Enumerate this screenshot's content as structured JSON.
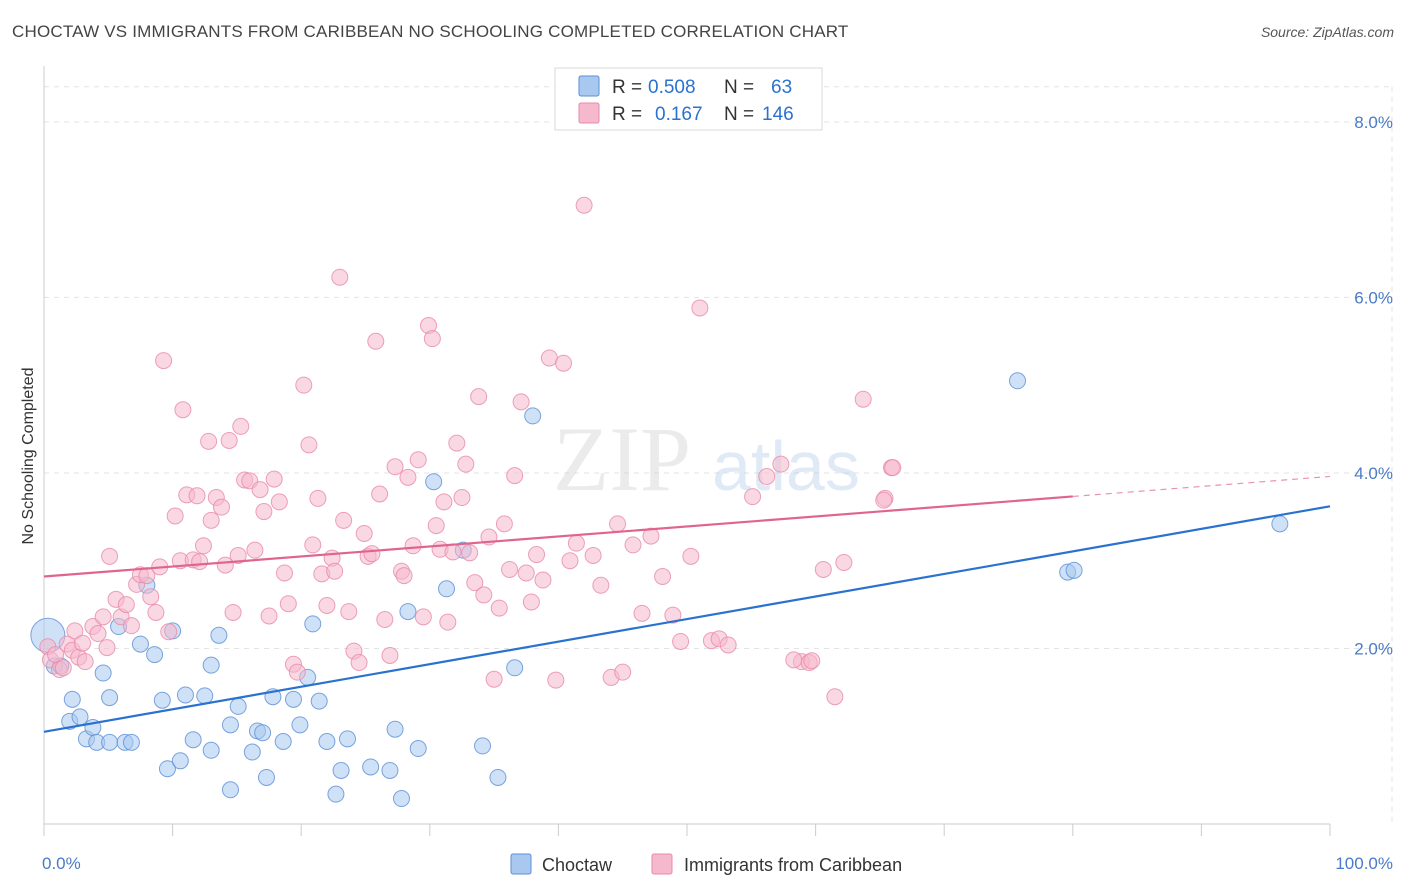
{
  "header": {
    "title": "CHOCTAW VS IMMIGRANTS FROM CARIBBEAN NO SCHOOLING COMPLETED CORRELATION CHART",
    "source": "Source: ZipAtlas.com"
  },
  "watermark": {
    "zip": "ZIP",
    "atlas": "atlas"
  },
  "chart_data": {
    "type": "scatter",
    "title": "CHOCTAW VS IMMIGRANTS FROM CARIBBEAN NO SCHOOLING COMPLETED CORRELATION CHART",
    "ylabel": "No Schooling Completed",
    "xlim": [
      0,
      100
    ],
    "ylim": [
      0,
      8.5
    ],
    "x_tick_labels": [
      "0.0%",
      "100.0%"
    ],
    "y_ticks": [
      2,
      4,
      6,
      8
    ],
    "y_tick_labels": [
      "2.0%",
      "4.0%",
      "6.0%",
      "8.0%"
    ],
    "grid": true,
    "legend_top": [
      {
        "r_label": "R =",
        "r_value": "0.508",
        "n_label": "N =",
        "n_value": "63",
        "color": "#a8c8f0"
      },
      {
        "r_label": "R =",
        "r_value": "0.167",
        "n_label": "N =",
        "n_value": "146",
        "color": "#f5b8cc"
      }
    ],
    "legend_bottom": [
      "Choctaw",
      "Immigrants from Caribbean"
    ],
    "series": [
      {
        "name": "Choctaw",
        "fill": "#a8c8f0",
        "stroke": "#5b8fd6",
        "line_color": "#2a72d0",
        "trend": {
          "x0": 0,
          "y0": 1.05,
          "x1": 100,
          "y1": 3.62,
          "dash_from": null
        },
        "points": [
          [
            0.3,
            2.15
          ],
          [
            0.8,
            1.8
          ],
          [
            1.3,
            1.8
          ],
          [
            2.0,
            1.17
          ],
          [
            2.2,
            1.42
          ],
          [
            2.8,
            1.22
          ],
          [
            3.3,
            0.97
          ],
          [
            3.8,
            1.1
          ],
          [
            4.1,
            0.93
          ],
          [
            4.6,
            1.72
          ],
          [
            5.1,
            1.44
          ],
          [
            5.1,
            0.93
          ],
          [
            5.8,
            2.25
          ],
          [
            6.3,
            0.93
          ],
          [
            6.8,
            0.93
          ],
          [
            7.5,
            2.05
          ],
          [
            8.0,
            2.72
          ],
          [
            8.6,
            1.93
          ],
          [
            9.2,
            1.41
          ],
          [
            9.6,
            0.63
          ],
          [
            10.0,
            2.2
          ],
          [
            10.6,
            0.72
          ],
          [
            11.0,
            1.47
          ],
          [
            11.6,
            0.96
          ],
          [
            12.5,
            1.46
          ],
          [
            13.0,
            1.81
          ],
          [
            13.0,
            0.84
          ],
          [
            13.6,
            2.15
          ],
          [
            14.5,
            0.39
          ],
          [
            14.5,
            1.13
          ],
          [
            15.1,
            1.34
          ],
          [
            16.2,
            0.82
          ],
          [
            16.6,
            1.06
          ],
          [
            17.0,
            1.04
          ],
          [
            17.3,
            0.53
          ],
          [
            17.8,
            1.45
          ],
          [
            18.6,
            0.94
          ],
          [
            19.4,
            1.42
          ],
          [
            19.9,
            1.13
          ],
          [
            20.5,
            1.67
          ],
          [
            20.9,
            2.28
          ],
          [
            21.4,
            1.4
          ],
          [
            22.0,
            0.94
          ],
          [
            22.7,
            0.34
          ],
          [
            23.1,
            0.61
          ],
          [
            23.6,
            0.97
          ],
          [
            25.4,
            0.65
          ],
          [
            26.9,
            0.61
          ],
          [
            27.3,
            1.08
          ],
          [
            27.8,
            0.29
          ],
          [
            28.3,
            2.42
          ],
          [
            29.1,
            0.86
          ],
          [
            30.3,
            3.9
          ],
          [
            31.3,
            2.68
          ],
          [
            32.6,
            3.12
          ],
          [
            34.1,
            0.89
          ],
          [
            35.3,
            0.53
          ],
          [
            36.6,
            1.78
          ],
          [
            38.0,
            4.65
          ],
          [
            75.7,
            5.05
          ],
          [
            79.6,
            2.87
          ],
          [
            80.1,
            2.89
          ],
          [
            96.1,
            3.42
          ]
        ]
      },
      {
        "name": "Immigrants from Caribbean",
        "fill": "#f5b8cc",
        "stroke": "#e88aa8",
        "line_color": "#e0658c",
        "trend": {
          "x0": 0,
          "y0": 2.82,
          "x1": 100,
          "y1": 3.96,
          "dash_from": 80
        },
        "points": [
          [
            0.3,
            2.02
          ],
          [
            0.5,
            1.87
          ],
          [
            0.9,
            1.93
          ],
          [
            1.2,
            1.76
          ],
          [
            1.5,
            1.78
          ],
          [
            1.8,
            2.05
          ],
          [
            2.2,
            1.98
          ],
          [
            2.4,
            2.2
          ],
          [
            2.7,
            1.9
          ],
          [
            3.0,
            2.06
          ],
          [
            3.2,
            1.85
          ],
          [
            3.8,
            2.25
          ],
          [
            4.2,
            2.17
          ],
          [
            4.6,
            2.36
          ],
          [
            4.9,
            2.01
          ],
          [
            5.1,
            3.05
          ],
          [
            5.6,
            2.56
          ],
          [
            6.0,
            2.36
          ],
          [
            6.4,
            2.5
          ],
          [
            6.8,
            2.26
          ],
          [
            7.2,
            2.73
          ],
          [
            7.5,
            2.84
          ],
          [
            8.0,
            2.83
          ],
          [
            8.3,
            2.59
          ],
          [
            8.7,
            2.41
          ],
          [
            9.0,
            2.93
          ],
          [
            9.3,
            5.28
          ],
          [
            9.7,
            2.19
          ],
          [
            10.2,
            3.51
          ],
          [
            10.6,
            3.0
          ],
          [
            10.8,
            4.72
          ],
          [
            11.1,
            3.75
          ],
          [
            11.6,
            3.01
          ],
          [
            11.9,
            3.74
          ],
          [
            12.1,
            2.99
          ],
          [
            12.4,
            3.17
          ],
          [
            12.8,
            4.36
          ],
          [
            13.0,
            3.46
          ],
          [
            13.4,
            3.72
          ],
          [
            13.8,
            3.61
          ],
          [
            14.1,
            2.95
          ],
          [
            14.4,
            4.37
          ],
          [
            14.7,
            2.41
          ],
          [
            15.1,
            3.06
          ],
          [
            15.3,
            4.53
          ],
          [
            15.6,
            3.92
          ],
          [
            16.0,
            3.91
          ],
          [
            16.4,
            3.12
          ],
          [
            16.8,
            3.81
          ],
          [
            17.1,
            3.56
          ],
          [
            17.5,
            2.37
          ],
          [
            17.9,
            3.93
          ],
          [
            18.3,
            3.67
          ],
          [
            18.7,
            2.86
          ],
          [
            19.0,
            2.51
          ],
          [
            19.4,
            1.82
          ],
          [
            19.7,
            1.73
          ],
          [
            20.2,
            5.0
          ],
          [
            20.6,
            4.32
          ],
          [
            20.9,
            3.18
          ],
          [
            21.3,
            3.71
          ],
          [
            21.6,
            2.85
          ],
          [
            22.0,
            2.49
          ],
          [
            22.4,
            3.03
          ],
          [
            22.6,
            2.88
          ],
          [
            23.0,
            6.23
          ],
          [
            23.3,
            3.46
          ],
          [
            23.7,
            2.42
          ],
          [
            24.1,
            1.97
          ],
          [
            24.5,
            1.84
          ],
          [
            24.9,
            3.31
          ],
          [
            25.2,
            3.05
          ],
          [
            25.5,
            3.08
          ],
          [
            25.8,
            5.5
          ],
          [
            26.1,
            3.76
          ],
          [
            26.5,
            2.33
          ],
          [
            26.9,
            1.92
          ],
          [
            27.3,
            4.07
          ],
          [
            27.8,
            2.88
          ],
          [
            28.0,
            2.83
          ],
          [
            28.3,
            3.95
          ],
          [
            28.7,
            3.17
          ],
          [
            29.1,
            4.15
          ],
          [
            29.5,
            2.36
          ],
          [
            29.9,
            5.68
          ],
          [
            30.2,
            5.53
          ],
          [
            30.5,
            3.4
          ],
          [
            30.8,
            3.13
          ],
          [
            31.1,
            3.67
          ],
          [
            31.4,
            2.3
          ],
          [
            31.8,
            3.1
          ],
          [
            32.1,
            4.34
          ],
          [
            32.5,
            3.72
          ],
          [
            32.8,
            4.1
          ],
          [
            33.1,
            3.09
          ],
          [
            33.5,
            2.75
          ],
          [
            33.8,
            4.87
          ],
          [
            34.2,
            2.61
          ],
          [
            34.6,
            3.27
          ],
          [
            35.0,
            1.65
          ],
          [
            35.4,
            2.46
          ],
          [
            35.8,
            3.42
          ],
          [
            36.2,
            2.9
          ],
          [
            36.6,
            3.97
          ],
          [
            37.1,
            4.81
          ],
          [
            37.5,
            2.86
          ],
          [
            37.9,
            2.53
          ],
          [
            38.3,
            3.07
          ],
          [
            38.8,
            2.78
          ],
          [
            39.3,
            5.31
          ],
          [
            39.8,
            1.64
          ],
          [
            40.4,
            5.25
          ],
          [
            40.9,
            3.0
          ],
          [
            41.4,
            3.2
          ],
          [
            42.0,
            7.05
          ],
          [
            42.7,
            3.06
          ],
          [
            43.3,
            2.72
          ],
          [
            44.1,
            1.67
          ],
          [
            44.6,
            3.42
          ],
          [
            45.0,
            1.73
          ],
          [
            45.8,
            3.18
          ],
          [
            46.5,
            2.4
          ],
          [
            47.2,
            3.28
          ],
          [
            48.1,
            2.82
          ],
          [
            48.9,
            2.38
          ],
          [
            49.5,
            2.08
          ],
          [
            50.3,
            3.05
          ],
          [
            51.0,
            5.88
          ],
          [
            51.9,
            2.09
          ],
          [
            52.5,
            2.11
          ],
          [
            53.2,
            2.04
          ],
          [
            55.1,
            3.73
          ],
          [
            56.2,
            3.96
          ],
          [
            57.3,
            4.1
          ],
          [
            58.9,
            1.85
          ],
          [
            59.5,
            1.84
          ],
          [
            59.7,
            1.86
          ],
          [
            60.6,
            2.9
          ],
          [
            61.5,
            1.45
          ],
          [
            62.2,
            2.98
          ],
          [
            63.7,
            4.84
          ],
          [
            65.4,
            3.71
          ],
          [
            65.9,
            4.06
          ],
          [
            65.3,
            3.69
          ],
          [
            66.0,
            4.06
          ],
          [
            58.3,
            1.87
          ]
        ]
      }
    ]
  }
}
